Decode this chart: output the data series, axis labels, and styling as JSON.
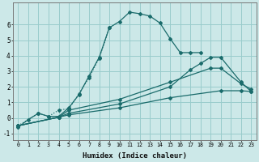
{
  "title": "",
  "xlabel": "Humidex (Indice chaleur)",
  "ylabel": "",
  "background_color": "#cce8e8",
  "grid_color": "#99cccc",
  "line_color": "#1a6b6b",
  "xlim": [
    -0.5,
    23.5
  ],
  "ylim": [
    -1.4,
    7.4
  ],
  "xticks": [
    0,
    1,
    2,
    3,
    4,
    5,
    6,
    7,
    8,
    9,
    10,
    11,
    12,
    13,
    14,
    15,
    16,
    17,
    18,
    19,
    20,
    21,
    22,
    23
  ],
  "yticks": [
    -1,
    0,
    1,
    2,
    3,
    4,
    5,
    6
  ],
  "lines": [
    {
      "x": [
        0,
        1,
        2,
        3,
        4,
        5,
        6,
        7,
        8,
        9,
        10,
        11,
        12,
        13,
        14,
        15,
        16,
        17,
        18
      ],
      "y": [
        -0.6,
        -0.1,
        0.3,
        0.1,
        0.1,
        0.65,
        1.5,
        2.7,
        3.9,
        5.8,
        6.2,
        6.8,
        6.7,
        6.55,
        6.1,
        5.1,
        4.2,
        4.2,
        4.2
      ],
      "dotted": false
    },
    {
      "x": [
        0,
        2,
        3,
        4,
        5,
        6,
        7,
        8,
        9
      ],
      "y": [
        -0.5,
        0.3,
        0.1,
        0.5,
        0.6,
        1.55,
        2.6,
        3.85,
        5.8
      ],
      "dotted": true
    },
    {
      "x": [
        0,
        4,
        5,
        10,
        15,
        19,
        20,
        22,
        23
      ],
      "y": [
        -0.5,
        0.05,
        0.5,
        1.2,
        2.3,
        3.2,
        3.2,
        2.2,
        1.85
      ],
      "dotted": false
    },
    {
      "x": [
        0,
        4,
        5,
        10,
        15,
        17,
        18,
        19,
        20,
        22,
        23
      ],
      "y": [
        -0.5,
        0.05,
        0.3,
        0.9,
        2.0,
        3.1,
        3.5,
        3.9,
        3.9,
        2.3,
        1.7
      ],
      "dotted": false
    },
    {
      "x": [
        0,
        4,
        5,
        10,
        15,
        20,
        22,
        23
      ],
      "y": [
        -0.5,
        0.05,
        0.2,
        0.65,
        1.3,
        1.75,
        1.75,
        1.7
      ],
      "dotted": false
    }
  ]
}
